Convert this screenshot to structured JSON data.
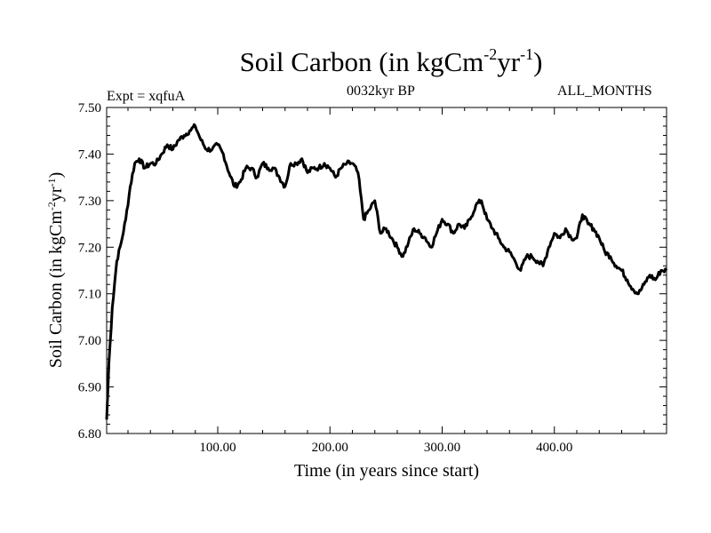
{
  "header": {
    "title_main": "Soil Carbon (in kgCm",
    "title_sup1": "-2",
    "title_mid": "yr",
    "title_sup2": "-1",
    "title_end": ")",
    "experiment": "Expt = xqfuA",
    "period": "0032kyr BP",
    "season": "ALL_MONTHS"
  },
  "chart_data": {
    "type": "line",
    "title": "Soil Carbon (in kgCm-2yr-1)",
    "xlabel": "Time (in years since start)",
    "ylabel": "Soil Carbon (in kgCm-2yr-1)",
    "ylabel_parts": {
      "a": "Soil Carbon (in kgCm",
      "s1": "-2",
      "b": "yr",
      "s2": "-1",
      "c": ")"
    },
    "xlim": [
      1,
      500
    ],
    "ylim": [
      6.8,
      7.5
    ],
    "x_ticks": [
      100,
      200,
      300,
      400
    ],
    "x_tick_labels": [
      "100.00",
      "200.00",
      "300.00",
      "400.00"
    ],
    "y_ticks": [
      6.8,
      6.9,
      7.0,
      7.1,
      7.2,
      7.3,
      7.4,
      7.5
    ],
    "y_tick_labels": [
      "6.80",
      "6.90",
      "7.00",
      "7.10",
      "7.20",
      "7.30",
      "7.40",
      "7.50"
    ],
    "grid": false,
    "series": [
      {
        "name": "Soil Carbon",
        "color": "#000000",
        "x": [
          1,
          3,
          6,
          10,
          14,
          18,
          22,
          26,
          30,
          35,
          40,
          45,
          50,
          55,
          60,
          65,
          70,
          75,
          80,
          85,
          90,
          95,
          100,
          105,
          110,
          115,
          120,
          125,
          130,
          135,
          140,
          145,
          150,
          155,
          160,
          165,
          170,
          175,
          180,
          185,
          190,
          195,
          200,
          205,
          210,
          215,
          220,
          225,
          230,
          235,
          240,
          245,
          250,
          255,
          260,
          265,
          270,
          275,
          280,
          285,
          290,
          295,
          300,
          305,
          310,
          315,
          320,
          325,
          330,
          335,
          340,
          345,
          350,
          355,
          360,
          365,
          370,
          375,
          380,
          385,
          390,
          395,
          400,
          405,
          410,
          415,
          420,
          425,
          430,
          435,
          440,
          445,
          450,
          455,
          460,
          465,
          470,
          475,
          480,
          485,
          490,
          495,
          500
        ],
        "values": [
          6.83,
          6.95,
          7.07,
          7.17,
          7.21,
          7.26,
          7.33,
          7.38,
          7.39,
          7.37,
          7.38,
          7.38,
          7.4,
          7.42,
          7.41,
          7.43,
          7.44,
          7.45,
          7.46,
          7.43,
          7.41,
          7.41,
          7.42,
          7.4,
          7.36,
          7.33,
          7.34,
          7.37,
          7.37,
          7.35,
          7.38,
          7.37,
          7.37,
          7.35,
          7.33,
          7.38,
          7.38,
          7.39,
          7.36,
          7.37,
          7.37,
          7.38,
          7.37,
          7.35,
          7.37,
          7.38,
          7.38,
          7.36,
          7.26,
          7.28,
          7.3,
          7.23,
          7.24,
          7.22,
          7.2,
          7.18,
          7.21,
          7.24,
          7.23,
          7.22,
          7.2,
          7.23,
          7.26,
          7.25,
          7.23,
          7.25,
          7.24,
          7.26,
          7.29,
          7.3,
          7.26,
          7.24,
          7.22,
          7.2,
          7.19,
          7.17,
          7.15,
          7.18,
          7.18,
          7.17,
          7.16,
          7.2,
          7.23,
          7.22,
          7.24,
          7.22,
          7.22,
          7.27,
          7.25,
          7.24,
          7.22,
          7.19,
          7.18,
          7.16,
          7.15,
          7.13,
          7.11,
          7.1,
          7.12,
          7.14,
          7.13,
          7.15,
          7.15
        ]
      }
    ]
  }
}
